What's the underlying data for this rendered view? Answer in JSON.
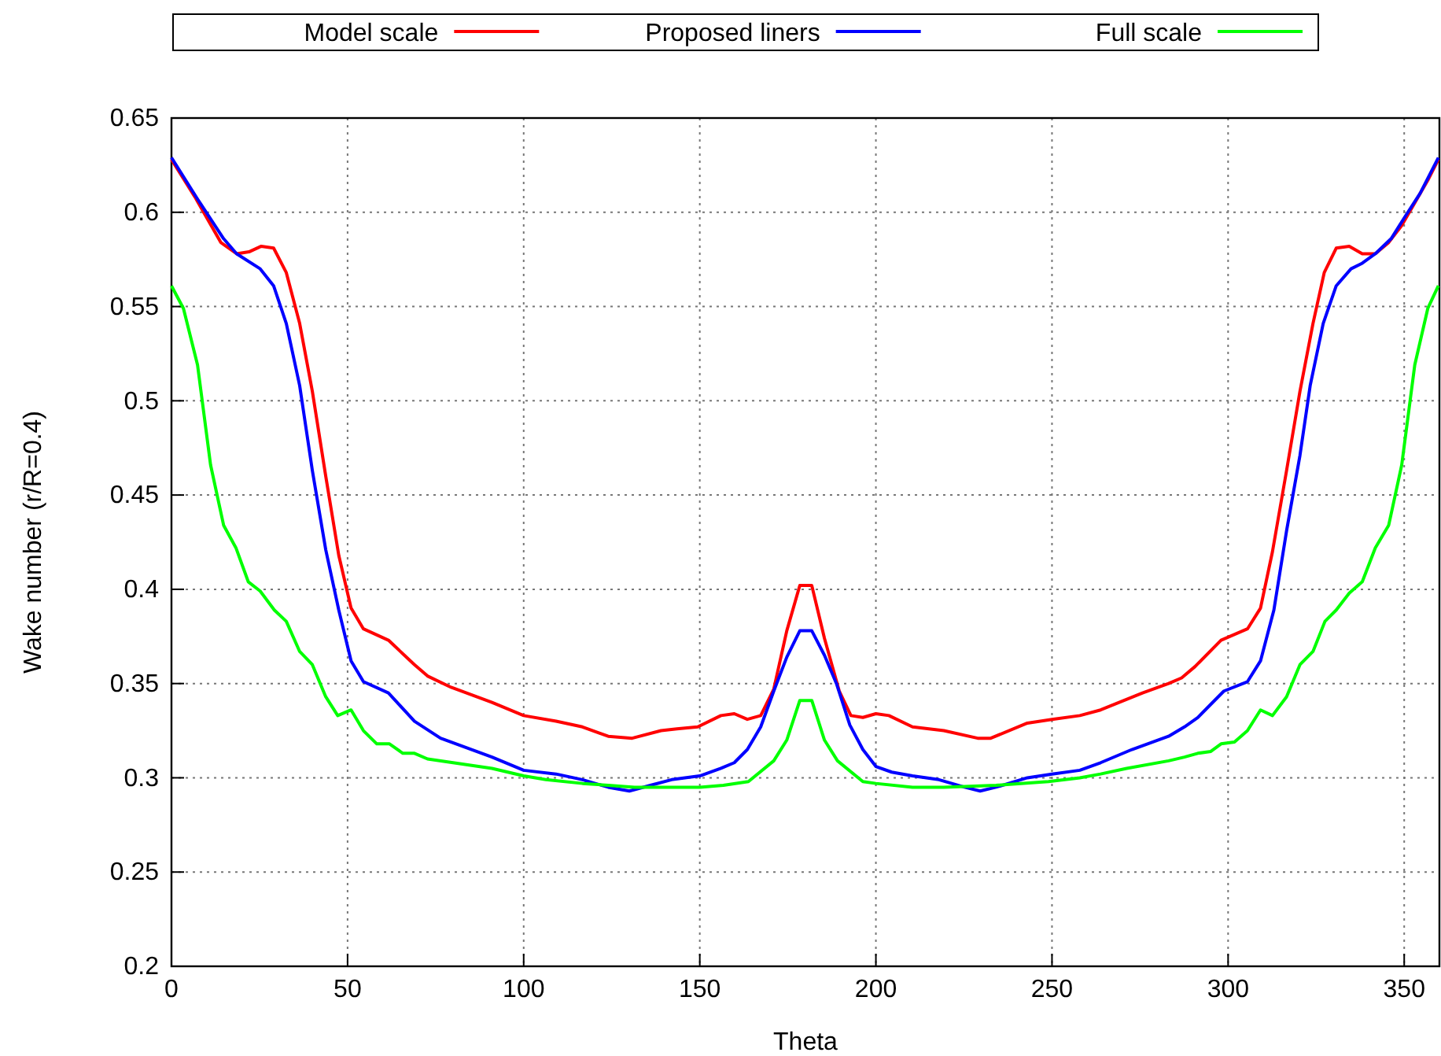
{
  "chart_data": {
    "type": "line",
    "xlabel": "Theta",
    "ylabel": "Wake number (r/R=0.4)",
    "xlim": [
      0,
      360
    ],
    "ylim": [
      0.2,
      0.65
    ],
    "xticks": [
      0,
      50,
      100,
      150,
      200,
      250,
      300,
      350
    ],
    "yticks": [
      0.2,
      0.25,
      0.3,
      0.35,
      0.4,
      0.45,
      0.5,
      0.55,
      0.6,
      0.65
    ],
    "grid": true,
    "legend": "top",
    "line_style": "solid",
    "marker": "none",
    "series": [
      {
        "name": "Model scale",
        "color": "#ff0000",
        "x": [
          0,
          6.7,
          14,
          18.5,
          22,
          25.5,
          29,
          32.6,
          36.4,
          40,
          43.8,
          47.5,
          51,
          54.5,
          61.6,
          69,
          72.7,
          79.4,
          91,
          100,
          109.2,
          116.7,
          124,
          130.8,
          139,
          143.5,
          149.4,
          156,
          159.8,
          163.5,
          167.3,
          171,
          174.7,
          178.4,
          181.8,
          185.4,
          189.6,
          192.9,
          196.3,
          200,
          203.7,
          210.4,
          219.3,
          228.9,
          232.6,
          243,
          250,
          257.9,
          263.8,
          275.7,
          283.1,
          286.8,
          290.6,
          298,
          305.5,
          309.2,
          312.6,
          316.6,
          320.4,
          324.1,
          327.3,
          330.7,
          334.4,
          338.1,
          341.8,
          345.6,
          349.3,
          353,
          356.7,
          359.7
        ],
        "values": [
          0.628,
          0.608,
          0.584,
          0.578,
          0.579,
          0.582,
          0.581,
          0.568,
          0.541,
          0.505,
          0.46,
          0.418,
          0.39,
          0.379,
          0.373,
          0.36,
          0.354,
          0.348,
          0.34,
          0.333,
          0.33,
          0.327,
          0.322,
          0.321,
          0.325,
          0.326,
          0.327,
          0.333,
          0.334,
          0.331,
          0.333,
          0.347,
          0.378,
          0.402,
          0.402,
          0.374,
          0.346,
          0.333,
          0.332,
          0.334,
          0.333,
          0.327,
          0.325,
          0.321,
          0.321,
          0.329,
          0.331,
          0.333,
          0.336,
          0.345,
          0.35,
          0.353,
          0.359,
          0.373,
          0.379,
          0.39,
          0.42,
          0.463,
          0.505,
          0.541,
          0.568,
          0.581,
          0.582,
          0.578,
          0.578,
          0.584,
          0.593,
          0.605,
          0.617,
          0.628
        ]
      },
      {
        "name": "Proposed liners",
        "color": "#0000ff",
        "x": [
          0,
          7.4,
          14.8,
          18.5,
          25.2,
          29,
          32.6,
          36.4,
          40,
          43.8,
          47.5,
          51,
          54.5,
          61.6,
          69,
          76.4,
          91,
          100,
          109.2,
          116.7,
          124,
          130,
          136,
          142,
          150,
          156,
          159.8,
          163.5,
          167.3,
          171,
          174.7,
          178.4,
          181.8,
          185.4,
          188.8,
          192.6,
          196.3,
          200,
          204.5,
          210.4,
          217.9,
          225.2,
          229.6,
          234.1,
          243,
          250,
          257.9,
          263.8,
          272.7,
          283.1,
          287.6,
          291.4,
          295.1,
          298.8,
          305.5,
          309.2,
          313,
          316.6,
          320.4,
          323.3,
          327,
          330.7,
          334.9,
          338.1,
          341.8,
          346.3,
          350,
          354.5,
          359.7
        ],
        "values": [
          0.629,
          0.607,
          0.586,
          0.578,
          0.57,
          0.561,
          0.541,
          0.508,
          0.463,
          0.421,
          0.389,
          0.362,
          0.351,
          0.345,
          0.33,
          0.321,
          0.311,
          0.304,
          0.302,
          0.299,
          0.295,
          0.293,
          0.296,
          0.299,
          0.301,
          0.305,
          0.308,
          0.315,
          0.327,
          0.346,
          0.364,
          0.378,
          0.378,
          0.365,
          0.35,
          0.328,
          0.315,
          0.306,
          0.303,
          0.301,
          0.299,
          0.295,
          0.293,
          0.295,
          0.3,
          0.302,
          0.304,
          0.308,
          0.315,
          0.322,
          0.327,
          0.332,
          0.339,
          0.346,
          0.351,
          0.362,
          0.389,
          0.431,
          0.471,
          0.508,
          0.541,
          0.561,
          0.57,
          0.573,
          0.578,
          0.586,
          0.597,
          0.61,
          0.629
        ]
      },
      {
        "name": "Full scale",
        "color": "#00ff00",
        "x": [
          0,
          3.4,
          7.4,
          11.1,
          14.8,
          18.3,
          21.8,
          25.2,
          29.2,
          32.6,
          36.4,
          40,
          43.8,
          47.2,
          51,
          54.5,
          58.3,
          61.9,
          65.7,
          69,
          72.7,
          91,
          100,
          106.3,
          116.7,
          124,
          131.5,
          142,
          150,
          156.7,
          163.8,
          171,
          174.7,
          178.4,
          181.8,
          185.4,
          189.1,
          196.3,
          200,
          210.4,
          219.2,
          234.1,
          249,
          257.9,
          263.8,
          271.2,
          283.1,
          287.6,
          291.4,
          295.1,
          298,
          301.8,
          305.5,
          309.2,
          312.6,
          316.6,
          320.4,
          324.1,
          327.5,
          330.7,
          334.4,
          338.1,
          341.8,
          345.6,
          349.3,
          353,
          356.7,
          359.7
        ],
        "values": [
          0.561,
          0.549,
          0.519,
          0.466,
          0.434,
          0.422,
          0.404,
          0.399,
          0.389,
          0.383,
          0.367,
          0.36,
          0.343,
          0.333,
          0.336,
          0.325,
          0.318,
          0.318,
          0.313,
          0.313,
          0.31,
          0.305,
          0.301,
          0.299,
          0.297,
          0.296,
          0.295,
          0.295,
          0.295,
          0.296,
          0.298,
          0.309,
          0.32,
          0.341,
          0.341,
          0.32,
          0.309,
          0.298,
          0.297,
          0.295,
          0.295,
          0.296,
          0.298,
          0.3,
          0.302,
          0.305,
          0.309,
          0.311,
          0.313,
          0.314,
          0.318,
          0.319,
          0.325,
          0.336,
          0.333,
          0.343,
          0.36,
          0.367,
          0.383,
          0.389,
          0.398,
          0.404,
          0.422,
          0.434,
          0.466,
          0.519,
          0.549,
          0.561
        ]
      }
    ]
  }
}
